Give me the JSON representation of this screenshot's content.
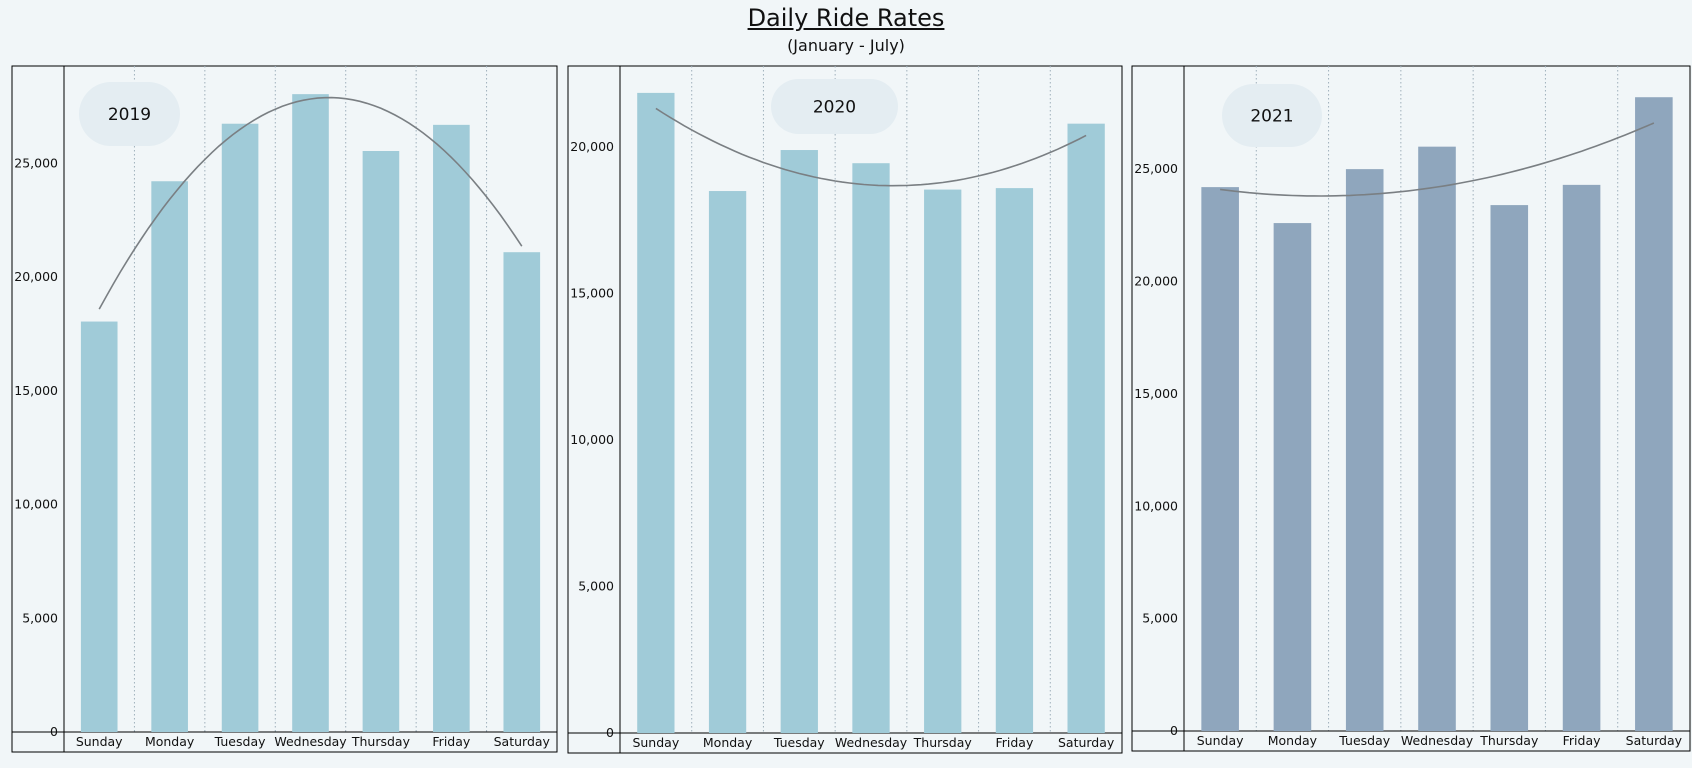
{
  "dashboard": {
    "title": "Daily Ride Rates",
    "subtitle": "(January - July)"
  },
  "colors": {
    "background": "#f1f6f8",
    "bar_light": "#a0cbd8",
    "bar_dark": "#8fa6bd",
    "trend_line": "#7a7f83",
    "label_bubble": "#e4edf2",
    "axis": "#000000",
    "grid": "#9fb0bb"
  },
  "chart_data": [
    {
      "type": "bar",
      "panel_label": "2019",
      "categories": [
        "Sunday",
        "Monday",
        "Tuesday",
        "Wednesday",
        "Thursday",
        "Friday",
        "Saturday"
      ],
      "values": [
        18050,
        24220,
        26750,
        28050,
        25550,
        26700,
        21100
      ],
      "trend": "polynomial",
      "yticks": [
        "0",
        "5,000",
        "10,000",
        "15,000",
        "20,000",
        "25,000"
      ],
      "ylim": [
        0,
        29200
      ],
      "color": "light"
    },
    {
      "type": "bar",
      "panel_label": "2020",
      "categories": [
        "Sunday",
        "Monday",
        "Tuesday",
        "Wednesday",
        "Thursday",
        "Friday",
        "Saturday"
      ],
      "values": [
        21850,
        18500,
        19900,
        19450,
        18550,
        18600,
        20800
      ],
      "trend": "polynomial",
      "yticks": [
        "0",
        "5,000",
        "10,000",
        "15,000",
        "20,000"
      ],
      "ylim": [
        0,
        22700
      ],
      "color": "light"
    },
    {
      "type": "bar",
      "panel_label": "2021",
      "categories": [
        "Sunday",
        "Monday",
        "Tuesday",
        "Wednesday",
        "Thursday",
        "Friday",
        "Saturday"
      ],
      "values": [
        24200,
        22600,
        25000,
        26000,
        23400,
        24300,
        28200
      ],
      "trend": "polynomial",
      "yticks": [
        "0",
        "5,000",
        "10,000",
        "15,000",
        "20,000",
        "25,000"
      ],
      "ylim": [
        0,
        29500
      ],
      "color": "dark"
    }
  ]
}
